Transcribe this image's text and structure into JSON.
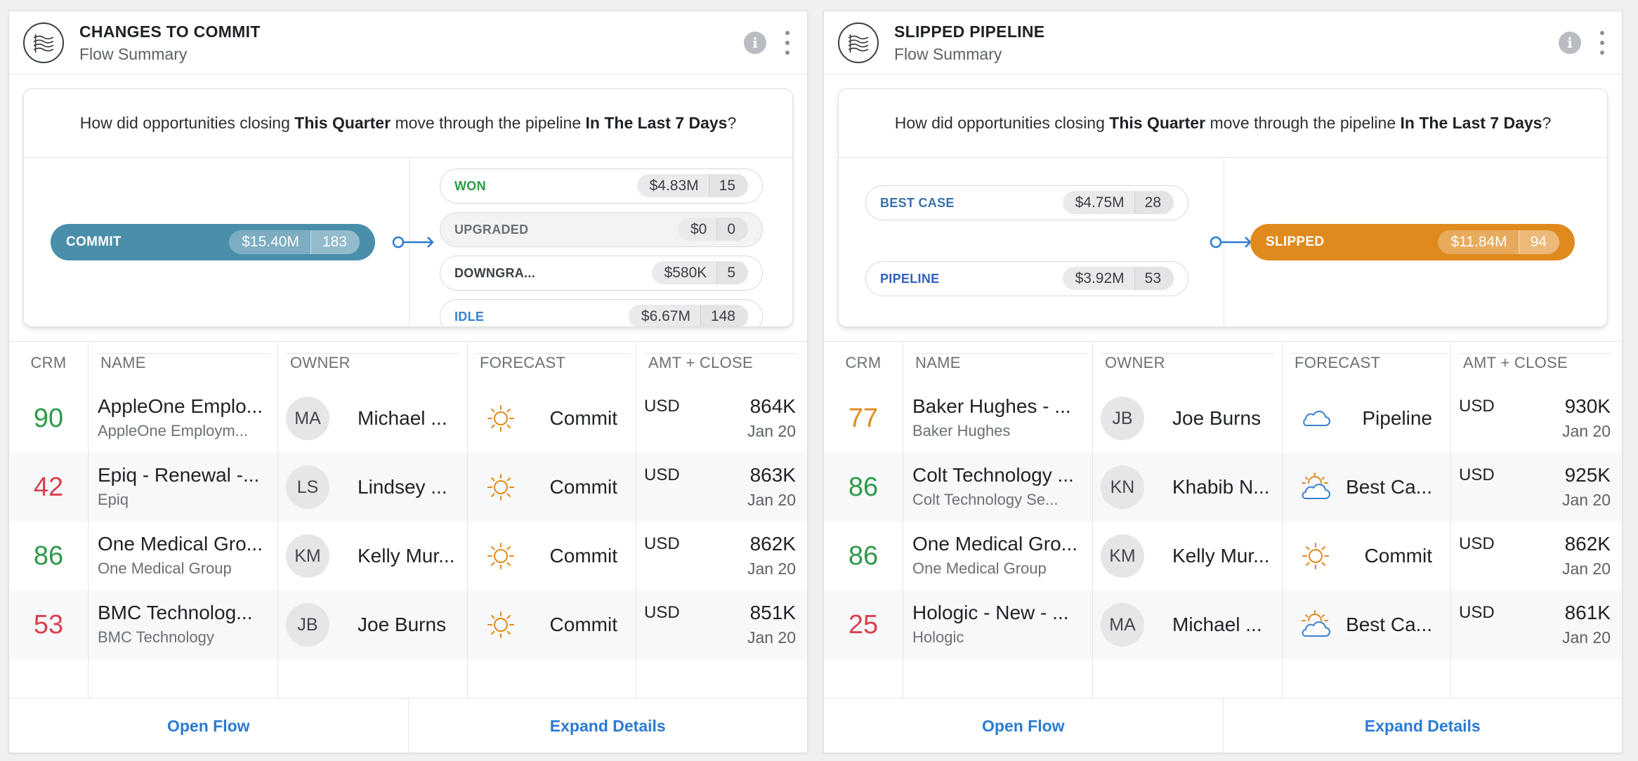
{
  "colors": {
    "commit": "#4a8eaa",
    "slipped": "#e08a1e",
    "won": "#2e9a48",
    "upgraded": "#6b7075",
    "downgraded": "#3b3f44",
    "idle": "#3a80d0",
    "best_case": "#3a70a8",
    "pipeline": "#3060c0",
    "score_high": "#2e9a48",
    "score_low": "#d9414f",
    "score_mid": "#e08a1e",
    "link": "#2a7bd4"
  },
  "question": {
    "prefix": "How did opportunities closing ",
    "period": "This Quarter",
    "middle": " move through the pipeline ",
    "window": "In The Last 7 Days",
    "suffix": "?"
  },
  "columns": {
    "crm": "CRM",
    "name": "NAME",
    "owner": "OWNER",
    "forecast": "FORECAST",
    "amt_close": "AMT + CLOSE"
  },
  "footer": {
    "open_flow": "Open Flow",
    "expand_details": "Expand Details"
  },
  "cards": [
    {
      "title": "CHANGES TO COMMIT",
      "subtitle": "Flow Summary",
      "source": {
        "label": "COMMIT",
        "amount": "$15.40M",
        "count": "183"
      },
      "targets": [
        {
          "label": "WON",
          "amount": "$4.83M",
          "count": "15"
        },
        {
          "label": "UPGRADED",
          "amount": "$0",
          "count": "0"
        },
        {
          "label": "DOWNGRA...",
          "amount": "$580K",
          "count": "5"
        },
        {
          "label": "IDLE",
          "amount": "$6.67M",
          "count": "148"
        }
      ],
      "rows": [
        {
          "score": "90",
          "name": "AppleOne Emplo...",
          "account": "AppleOne Employm...",
          "initials": "MA",
          "owner": "Michael ...",
          "forecast": "Commit",
          "forecast_icon": "sun-icon",
          "currency": "USD",
          "amount": "864K",
          "close": "Jan 20"
        },
        {
          "score": "42",
          "name": "Epiq - Renewal -...",
          "account": "Epiq",
          "initials": "LS",
          "owner": "Lindsey ...",
          "forecast": "Commit",
          "forecast_icon": "sun-icon",
          "currency": "USD",
          "amount": "863K",
          "close": "Jan 20"
        },
        {
          "score": "86",
          "name": "One Medical Gro...",
          "account": "One Medical Group",
          "initials": "KM",
          "owner": "Kelly Mur...",
          "forecast": "Commit",
          "forecast_icon": "sun-icon",
          "currency": "USD",
          "amount": "862K",
          "close": "Jan 20"
        },
        {
          "score": "53",
          "name": "BMC Technolog...",
          "account": "BMC Technology",
          "initials": "JB",
          "owner": "Joe Burns",
          "forecast": "Commit",
          "forecast_icon": "sun-icon",
          "currency": "USD",
          "amount": "851K",
          "close": "Jan 20"
        }
      ]
    },
    {
      "title": "SLIPPED PIPELINE",
      "subtitle": "Flow Summary",
      "sources": [
        {
          "label": "BEST CASE",
          "amount": "$4.75M",
          "count": "28"
        },
        {
          "label": "PIPELINE",
          "amount": "$3.92M",
          "count": "53"
        }
      ],
      "target": {
        "label": "SLIPPED",
        "amount": "$11.84M",
        "count": "94"
      },
      "rows": [
        {
          "score": "77",
          "name": "Baker Hughes - ...",
          "account": "Baker Hughes",
          "initials": "JB",
          "owner": "Joe Burns",
          "forecast": "Pipeline",
          "forecast_icon": "cloud-icon",
          "currency": "USD",
          "amount": "930K",
          "close": "Jan 20"
        },
        {
          "score": "86",
          "name": "Colt Technology ...",
          "account": "Colt Technology Se...",
          "initials": "KN",
          "owner": "Khabib N...",
          "forecast": "Best Ca...",
          "forecast_icon": "partly-sunny-icon",
          "currency": "USD",
          "amount": "925K",
          "close": "Jan 20"
        },
        {
          "score": "86",
          "name": "One Medical Gro...",
          "account": "One Medical Group",
          "initials": "KM",
          "owner": "Kelly Mur...",
          "forecast": "Commit",
          "forecast_icon": "sun-icon",
          "currency": "USD",
          "amount": "862K",
          "close": "Jan 20"
        },
        {
          "score": "25",
          "name": "Hologic - New - ...",
          "account": "Hologic",
          "initials": "MA",
          "owner": "Michael ...",
          "forecast": "Best Ca...",
          "forecast_icon": "partly-sunny-icon",
          "currency": "USD",
          "amount": "861K",
          "close": "Jan 20"
        }
      ]
    }
  ]
}
